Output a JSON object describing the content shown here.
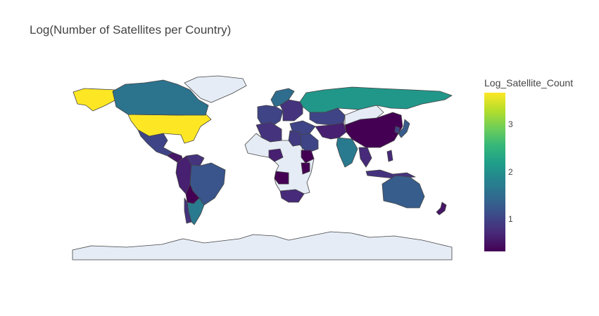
{
  "title": "Log(Number of Satellites per Country)",
  "colorbar": {
    "title": "Log_Satellite_Count",
    "ticks": [
      "1",
      "2",
      "3"
    ],
    "colorscale": "Viridis",
    "range": [
      0.3,
      3.7
    ]
  },
  "colors": {
    "no_data": "#e5ecf6",
    "viridis": [
      "#440154",
      "#482878",
      "#3e4989",
      "#31688e",
      "#26828e",
      "#1f9e89",
      "#35b779",
      "#6ece58",
      "#b5de2b",
      "#fde725"
    ]
  },
  "chart_data": {
    "type": "choropleth",
    "title": "Log(Number of Satellites per Country)",
    "color_label": "Log_Satellite_Count",
    "color_range": [
      0.3,
      3.7
    ],
    "values": [
      {
        "country": "United States",
        "value": 3.7
      },
      {
        "country": "Alaska (US)",
        "value": 3.7
      },
      {
        "country": "Canada",
        "value": 1.6
      },
      {
        "country": "Greenland",
        "value": null
      },
      {
        "country": "Mexico",
        "value": 1.0
      },
      {
        "country": "Central America",
        "value": 0.5
      },
      {
        "country": "Colombia/Ecuador/Peru",
        "value": 0.6
      },
      {
        "country": "Venezuela",
        "value": 0.8
      },
      {
        "country": "Brazil",
        "value": 1.2
      },
      {
        "country": "Bolivia",
        "value": 0.3
      },
      {
        "country": "Argentina",
        "value": 1.7
      },
      {
        "country": "Chile",
        "value": 0.8
      },
      {
        "country": "Russia",
        "value": 2.1
      },
      {
        "country": "Nordic Europe",
        "value": 1.5
      },
      {
        "country": "Western Europe",
        "value": 1.0
      },
      {
        "country": "Eastern Europe",
        "value": 0.8
      },
      {
        "country": "China",
        "value": 0.3
      },
      {
        "country": "Kazakhstan",
        "value": 1.0
      },
      {
        "country": "Mongolia",
        "value": null
      },
      {
        "country": "Japan",
        "value": 1.3
      },
      {
        "country": "South Korea",
        "value": 1.0
      },
      {
        "country": "India",
        "value": 1.7
      },
      {
        "country": "Iran/Pakistan",
        "value": 0.6
      },
      {
        "country": "Saudi Arabia",
        "value": 1.0
      },
      {
        "country": "Turkey/Middle East",
        "value": 1.0
      },
      {
        "country": "Southeast Asia",
        "value": 0.7
      },
      {
        "country": "Indonesia",
        "value": 0.8
      },
      {
        "country": "Philippines",
        "value": 0.7
      },
      {
        "country": "Australia",
        "value": 1.3
      },
      {
        "country": "New Zealand",
        "value": 0.5
      },
      {
        "country": "Algeria",
        "value": 0.8
      },
      {
        "country": "Egypt",
        "value": 0.9
      },
      {
        "country": "Nigeria",
        "value": 0.6
      },
      {
        "country": "Ethiopia",
        "value": 0.3
      },
      {
        "country": "Kenya",
        "value": 0.3
      },
      {
        "country": "Angola",
        "value": 0.3
      },
      {
        "country": "South Africa",
        "value": 0.7
      },
      {
        "country": "Rest of Africa",
        "value": null
      },
      {
        "country": "Antarctica",
        "value": null
      }
    ]
  }
}
